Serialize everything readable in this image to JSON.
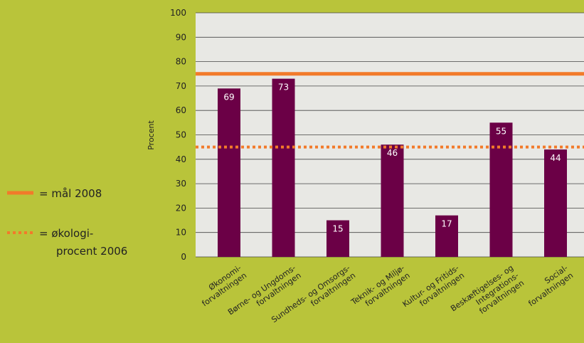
{
  "chart_data": {
    "type": "bar",
    "ylabel": "Procent",
    "ylim": [
      0,
      100
    ],
    "yticks": [
      0,
      10,
      20,
      30,
      40,
      50,
      60,
      70,
      80,
      90,
      100
    ],
    "grid": true,
    "categories": [
      [
        "Økonomi-",
        "forvaltningen"
      ],
      [
        "Børne- og Ungdoms-",
        "forvaltningen"
      ],
      [
        "Sundheds- og Omsorgs-",
        "forvaltningen"
      ],
      [
        "Teknik- og Miljø-",
        "forvaltningen"
      ],
      [
        "Kultur- og Fritids-",
        "forvaltningen"
      ],
      [
        "Beskæftigelses- og",
        "Integrations-",
        "forvaltningen"
      ],
      [
        "Social-",
        "forvaltningen"
      ]
    ],
    "values": [
      69,
      73,
      15,
      46,
      17,
      55,
      44
    ],
    "reference_lines": [
      {
        "label": "= mål 2008",
        "value": 75,
        "style": "solid"
      },
      {
        "label": "= økologi-\nprocent 2006",
        "value": 45,
        "style": "dotted"
      }
    ],
    "legend": {
      "items": [
        {
          "lines": [
            "= mål 2008"
          ],
          "style": "solid"
        },
        {
          "lines": [
            "= økologi-",
            "procent 2006"
          ],
          "style": "dotted"
        }
      ],
      "placement": "left"
    },
    "colors": {
      "background": "#b9c43a",
      "plot_bg": "#e8e8e4",
      "bar": "#6b0046",
      "line": "#f27a2a",
      "grid": "#444444"
    }
  }
}
